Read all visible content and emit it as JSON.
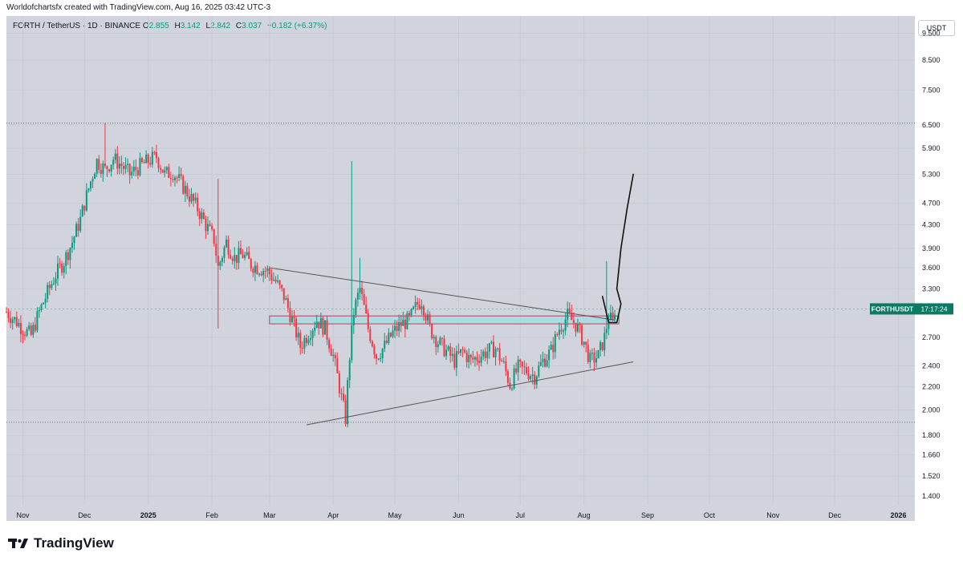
{
  "header": {
    "caption": "Worldofchartsfx created with TradingView.com, Aug 16, 2025 03:42 UTC-3"
  },
  "symbol_info": {
    "name": "FORTH / TetherUS · 1D · BINANCE",
    "open_label": "O",
    "open": "2.855",
    "high_label": "H",
    "high": "3.142",
    "low_label": "L",
    "low": "2.842",
    "close_label": "C",
    "close": "3.037",
    "change": "+0.182 (+6.37%)"
  },
  "price_scale": {
    "currency": "USDT",
    "ticker_label": "FORTHUSDT",
    "countdown": "17:17:24"
  },
  "brand": {
    "name": "TradingView"
  },
  "colors": {
    "background": "#d1d4dc",
    "up": "#089981",
    "down": "#f23645",
    "zone_fill": "#a8dbe3",
    "zone_border": "#c04050",
    "trendline": "#555555",
    "drawing": "#111111",
    "ticker_badge": "#0a7a62"
  },
  "chart_data": {
    "type": "candlestick",
    "symbol": "FORTH / TetherUS",
    "timeframe": "1D",
    "exchange": "BINANCE",
    "y_scale": "log",
    "ylim": [
      1.35,
      10.2
    ],
    "x_range": [
      "2024-10-24",
      "2026-01-09"
    ],
    "y_ticks": [
      "9.500",
      "8.500",
      "7.500",
      "6.500",
      "5.900",
      "5.300",
      "4.700",
      "4.300",
      "3.900",
      "3.600",
      "3.300",
      "2.700",
      "2.400",
      "2.200",
      "2.000",
      "1.800",
      "1.660",
      "1.520",
      "1.400"
    ],
    "x_ticks": [
      {
        "date": "2024-11-01",
        "label": "Nov",
        "bold": false
      },
      {
        "date": "2024-12-01",
        "label": "Dec",
        "bold": false
      },
      {
        "date": "2025-01-01",
        "label": "2025",
        "bold": true
      },
      {
        "date": "2025-02-01",
        "label": "Feb",
        "bold": false
      },
      {
        "date": "2025-03-01",
        "label": "Mar",
        "bold": false
      },
      {
        "date": "2025-04-01",
        "label": "Apr",
        "bold": false
      },
      {
        "date": "2025-05-01",
        "label": "May",
        "bold": false
      },
      {
        "date": "2025-06-01",
        "label": "Jun",
        "bold": false
      },
      {
        "date": "2025-07-01",
        "label": "Jul",
        "bold": false
      },
      {
        "date": "2025-08-01",
        "label": "Aug",
        "bold": false
      },
      {
        "date": "2025-09-01",
        "label": "Sep",
        "bold": false
      },
      {
        "date": "2025-10-01",
        "label": "Oct",
        "bold": false
      },
      {
        "date": "2025-11-01",
        "label": "Nov",
        "bold": false
      },
      {
        "date": "2025-12-01",
        "label": "Dec",
        "bold": false
      },
      {
        "date": "2026-01-01",
        "label": "2026",
        "bold": true
      }
    ],
    "close_path": [
      [
        "2024-10-24",
        3.0
      ],
      [
        "2024-10-29",
        2.88
      ],
      [
        "2024-11-01",
        2.8
      ],
      [
        "2024-11-05",
        2.72
      ],
      [
        "2024-11-09",
        3.0
      ],
      [
        "2024-11-13",
        3.25
      ],
      [
        "2024-11-17",
        3.5
      ],
      [
        "2024-11-21",
        3.7
      ],
      [
        "2024-11-25",
        4.0
      ],
      [
        "2024-11-29",
        4.4
      ],
      [
        "2024-12-03",
        5.0
      ],
      [
        "2024-12-07",
        5.6
      ],
      [
        "2024-12-11",
        5.4
      ],
      [
        "2024-12-15",
        5.65
      ],
      [
        "2024-12-19",
        5.5
      ],
      [
        "2024-12-23",
        5.3
      ],
      [
        "2024-12-27",
        5.45
      ],
      [
        "2025-01-01",
        5.6
      ],
      [
        "2025-01-05",
        5.7
      ],
      [
        "2025-01-09",
        5.3
      ],
      [
        "2025-01-13",
        5.35
      ],
      [
        "2025-01-17",
        5.1
      ],
      [
        "2025-01-21",
        4.85
      ],
      [
        "2025-01-25",
        4.6
      ],
      [
        "2025-01-29",
        4.3
      ],
      [
        "2025-02-02",
        4.05
      ],
      [
        "2025-02-04",
        3.6
      ],
      [
        "2025-02-08",
        4.0
      ],
      [
        "2025-02-12",
        3.75
      ],
      [
        "2025-02-16",
        3.8
      ],
      [
        "2025-02-20",
        3.65
      ],
      [
        "2025-02-24",
        3.6
      ],
      [
        "2025-02-28",
        3.55
      ],
      [
        "2025-03-04",
        3.4
      ],
      [
        "2025-03-08",
        3.2
      ],
      [
        "2025-03-12",
        2.9
      ],
      [
        "2025-03-16",
        2.6
      ],
      [
        "2025-03-20",
        2.75
      ],
      [
        "2025-03-24",
        2.9
      ],
      [
        "2025-03-28",
        2.8
      ],
      [
        "2025-04-01",
        2.5
      ],
      [
        "2025-04-05",
        2.1
      ],
      [
        "2025-04-07",
        1.93
      ],
      [
        "2025-04-09",
        2.5
      ],
      [
        "2025-04-11",
        3.0
      ],
      [
        "2025-04-14",
        3.3
      ],
      [
        "2025-04-18",
        2.8
      ],
      [
        "2025-04-22",
        2.5
      ],
      [
        "2025-04-26",
        2.6
      ],
      [
        "2025-04-30",
        2.75
      ],
      [
        "2025-05-04",
        2.85
      ],
      [
        "2025-05-08",
        2.9
      ],
      [
        "2025-05-12",
        3.1
      ],
      [
        "2025-05-14",
        3.15
      ],
      [
        "2025-05-18",
        2.8
      ],
      [
        "2025-05-22",
        2.65
      ],
      [
        "2025-05-26",
        2.55
      ],
      [
        "2025-05-30",
        2.45
      ],
      [
        "2025-06-03",
        2.55
      ],
      [
        "2025-06-07",
        2.45
      ],
      [
        "2025-06-11",
        2.5
      ],
      [
        "2025-06-15",
        2.55
      ],
      [
        "2025-06-19",
        2.58
      ],
      [
        "2025-06-23",
        2.4
      ],
      [
        "2025-06-26",
        2.22
      ],
      [
        "2025-06-30",
        2.38
      ],
      [
        "2025-07-04",
        2.35
      ],
      [
        "2025-07-08",
        2.3
      ],
      [
        "2025-07-12",
        2.45
      ],
      [
        "2025-07-16",
        2.55
      ],
      [
        "2025-07-20",
        2.8
      ],
      [
        "2025-07-24",
        2.95
      ],
      [
        "2025-07-28",
        2.85
      ],
      [
        "2025-08-01",
        2.65
      ],
      [
        "2025-08-04",
        2.45
      ],
      [
        "2025-08-08",
        2.5
      ],
      [
        "2025-08-11",
        2.7
      ],
      [
        "2025-08-13",
        2.95
      ],
      [
        "2025-08-15",
        2.86
      ],
      [
        "2025-08-16",
        3.04
      ]
    ],
    "spikes": [
      {
        "date": "2024-12-11",
        "high": 6.55
      },
      {
        "date": "2025-02-04",
        "high": 5.2,
        "low": 2.8
      },
      {
        "date": "2025-04-10",
        "high": 5.6
      },
      {
        "date": "2025-04-14",
        "high": 3.75
      },
      {
        "date": "2025-08-12",
        "high": 3.7
      }
    ],
    "annotations": {
      "resistance_zone": {
        "start": "2025-03-01",
        "end": "2025-08-18",
        "low": 2.855,
        "high": 2.95
      },
      "descending_trendline": [
        [
          "2025-03-01",
          3.6
        ],
        [
          "2025-08-16",
          2.9
        ]
      ],
      "ascending_trendline": [
        [
          "2025-03-19",
          1.88
        ],
        [
          "2025-08-25",
          2.44
        ]
      ],
      "dotted_level_high": 6.55,
      "dotted_level_low": 1.9,
      "hand_drawn_projection": [
        [
          "2025-08-10",
          3.2
        ],
        [
          "2025-08-13",
          2.87
        ],
        [
          "2025-08-17",
          2.87
        ],
        [
          "2025-08-19",
          3.1
        ],
        [
          "2025-08-17",
          3.3
        ],
        [
          "2025-08-19",
          3.9
        ],
        [
          "2025-08-22",
          4.6
        ],
        [
          "2025-08-25",
          5.3
        ]
      ]
    }
  }
}
